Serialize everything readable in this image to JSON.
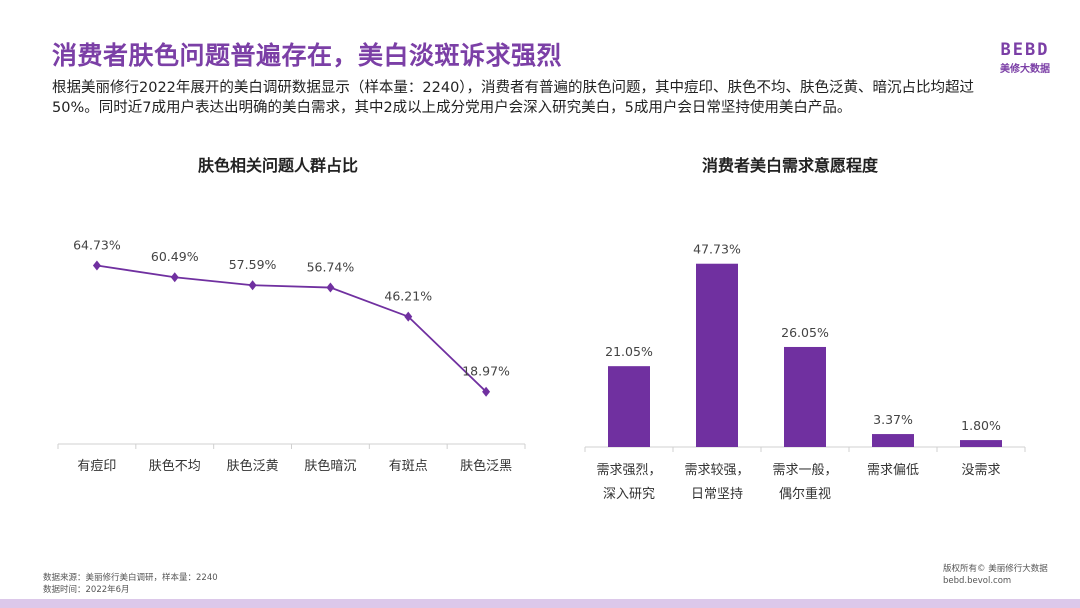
{
  "header": {
    "title": "消费者肤色问题普遍存在，美白淡斑诉求强烈",
    "logo_mark": "BEBD",
    "logo_sub": "美修大数据",
    "description": "根据美丽修行2022年展开的美白调研数据显示（样本量：2240），消费者有普遍的肤色问题，其中痘印、肤色不均、肤色泛黄、暗沉占比均超过50%。同时近7成用户表达出明确的美白需求，其中2成以上成分党用户会深入研究美白，5成用户会日常坚持使用美白产品。"
  },
  "colors": {
    "accent": "#7030a0",
    "title": "#7b3fa6",
    "axis": "#d0d0d0"
  },
  "chart_data": [
    {
      "type": "line",
      "title": "肤色相关问题人群占比",
      "categories": [
        "有痘印",
        "肤色不均",
        "肤色泛黄",
        "肤色暗沉",
        "有斑点",
        "肤色泛黑"
      ],
      "values": [
        64.73,
        60.49,
        57.59,
        56.74,
        46.21,
        18.97
      ],
      "labels": [
        "64.73%",
        "60.49%",
        "57.59%",
        "56.74%",
        "46.21%",
        "18.97%"
      ],
      "ylim": [
        0,
        70
      ],
      "grid": false
    },
    {
      "type": "bar",
      "title": "消费者美白需求意愿程度",
      "categories": [
        [
          "需求强烈，",
          "深入研究"
        ],
        [
          "需求较强，",
          "日常坚持"
        ],
        [
          "需求一般，",
          "偶尔重视"
        ],
        [
          "需求偏低"
        ],
        [
          "没需求"
        ]
      ],
      "values": [
        21.05,
        47.73,
        26.05,
        3.37,
        1.8
      ],
      "labels": [
        "21.05%",
        "47.73%",
        "26.05%",
        "3.37%",
        "1.80%"
      ],
      "ylim": [
        0,
        50
      ],
      "grid": false
    }
  ],
  "footer": {
    "source": "数据来源：美丽修行美白调研，样本量：2240",
    "time": "数据时间：2022年6月",
    "copyright": "版权所有© 美丽修行大数据",
    "site": "bebd.bevol.com"
  }
}
